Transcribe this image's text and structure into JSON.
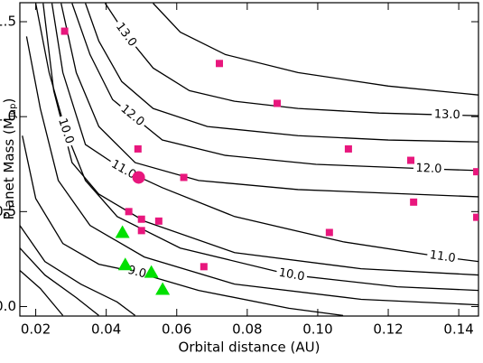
{
  "chart_data": {
    "type": "contour-scatter",
    "xlabel": "Orbital distance (AU)",
    "ylabel": "Planet Mass  (M",
    "ylabel_sub": "Jup",
    "ylabel_end": ")",
    "xlim": [
      0.0155,
      0.1456
    ],
    "ylim": [
      -0.05,
      1.6
    ],
    "xticks": [
      0.02,
      0.04,
      0.06,
      0.08,
      0.1,
      0.12,
      0.14
    ],
    "xtick_labels": [
      "0.02",
      "0.04",
      "0.06",
      "0.08",
      "0.10",
      "0.12",
      "0.14"
    ],
    "yticks": [
      {
        "value": 0,
        "label": "0.0"
      },
      0.5,
      {
        "value": 1,
        "label": "1.0"
      },
      1.5
    ],
    "contour_color": "#000000",
    "contours": [
      {
        "x": [
          0.0533,
          0.061,
          0.0738,
          0.0944,
          0.12,
          0.1456
        ],
        "y": [
          1.597,
          1.445,
          1.327,
          1.232,
          1.161,
          1.114
        ]
      },
      {
        "label": "13.0",
        "x": [
          0.0397,
          0.0456,
          0.0533,
          0.0636,
          0.0764,
          0.0944,
          0.1174,
          0.1367,
          0.1456
        ],
        "y": [
          1.597,
          1.431,
          1.256,
          1.137,
          1.081,
          1.043,
          1.019,
          1.009,
          1.005
        ]
      },
      {
        "x": [
          0.0341,
          0.0379,
          0.0444,
          0.0533,
          0.0687,
          0.0944,
          0.12,
          0.1456
        ],
        "y": [
          1.597,
          1.398,
          1.185,
          1.043,
          0.948,
          0.9,
          0.877,
          0.867
        ]
      },
      {
        "label": "12.0",
        "x": [
          0.0303,
          0.0354,
          0.0418,
          0.0474,
          0.0559,
          0.0738,
          0.0995,
          0.1315,
          0.1456
        ],
        "y": [
          1.597,
          1.327,
          1.09,
          1.005,
          0.877,
          0.796,
          0.749,
          0.725,
          0.716
        ]
      },
      {
        "x": [
          0.0272,
          0.0315,
          0.0379,
          0.0482,
          0.0662,
          0.0944,
          0.1456
        ],
        "y": [
          1.597,
          1.232,
          0.948,
          0.758,
          0.664,
          0.616,
          0.578
        ]
      },
      {
        "label": "11.0",
        "x": [
          0.0246,
          0.0277,
          0.0341,
          0.0449,
          0.0559,
          0.0764,
          0.1072,
          0.1354,
          0.1456
        ],
        "y": [
          1.597,
          1.232,
          0.853,
          0.72,
          0.626,
          0.474,
          0.341,
          0.261,
          0.237
        ]
      },
      {
        "x": [
          0.0221,
          0.0251,
          0.0303,
          0.0379,
          0.0508,
          0.0764,
          0.1123,
          0.1456
        ],
        "y": [
          1.597,
          1.137,
          0.758,
          0.592,
          0.45,
          0.284,
          0.199,
          0.166
        ]
      },
      {
        "label": "10.0",
        "x": [
          0.02,
          0.0238,
          0.0285,
          0.0341,
          0.0431,
          0.061,
          0.0926,
          0.1226,
          0.1456
        ],
        "y": [
          1.597,
          1.232,
          0.924,
          0.664,
          0.474,
          0.308,
          0.166,
          0.104,
          0.085
        ]
      },
      {
        "x": [
          0.0174,
          0.0213,
          0.0264,
          0.0354,
          0.0508,
          0.0764,
          0.1123,
          0.1456
        ],
        "y": [
          1.422,
          1.043,
          0.664,
          0.427,
          0.261,
          0.118,
          0.038,
          0.009
        ]
      },
      {
        "label": "9.0",
        "x": [
          0.0162,
          0.02,
          0.0277,
          0.0379,
          0.0487,
          0.0662,
          0.0918,
          0.1072
        ],
        "y": [
          0.9,
          0.569,
          0.332,
          0.223,
          0.18,
          0.085,
          -0.009,
          -0.047
        ]
      },
      {
        "x": [
          0.0155,
          0.0226,
          0.0328,
          0.0431,
          0.0482
        ],
        "y": [
          0.427,
          0.237,
          0.118,
          0.024,
          -0.047
        ]
      },
      {
        "x": [
          0.0155,
          0.0226,
          0.0315,
          0.0379
        ],
        "y": [
          0.308,
          0.166,
          0.047,
          -0.047
        ]
      },
      {
        "x": [
          0.0155,
          0.0213,
          0.0277
        ],
        "y": [
          0.19,
          0.095,
          -0.047
        ]
      }
    ],
    "series": [
      {
        "marker": "square",
        "color": "#e8177d",
        "x": [
          0.0282,
          0.0721,
          0.0885,
          0.049,
          0.1087,
          0.1264,
          0.1451,
          0.062,
          0.0464,
          0.05,
          0.05,
          0.0549,
          0.1272,
          0.1033,
          0.1451,
          0.0677
        ],
        "y": [
          1.45,
          1.28,
          1.07,
          0.83,
          0.83,
          0.77,
          0.71,
          0.68,
          0.5,
          0.46,
          0.4,
          0.45,
          0.55,
          0.39,
          0.47,
          0.21
        ]
      },
      {
        "marker": "circle",
        "color": "#e8177d",
        "x": [
          0.0492
        ],
        "y": [
          0.68
        ]
      },
      {
        "marker": "triangle",
        "color": "#00e000",
        "x": [
          0.0446,
          0.0454,
          0.0528,
          0.056
        ],
        "y": [
          0.39,
          0.22,
          0.18,
          0.09
        ]
      }
    ]
  }
}
